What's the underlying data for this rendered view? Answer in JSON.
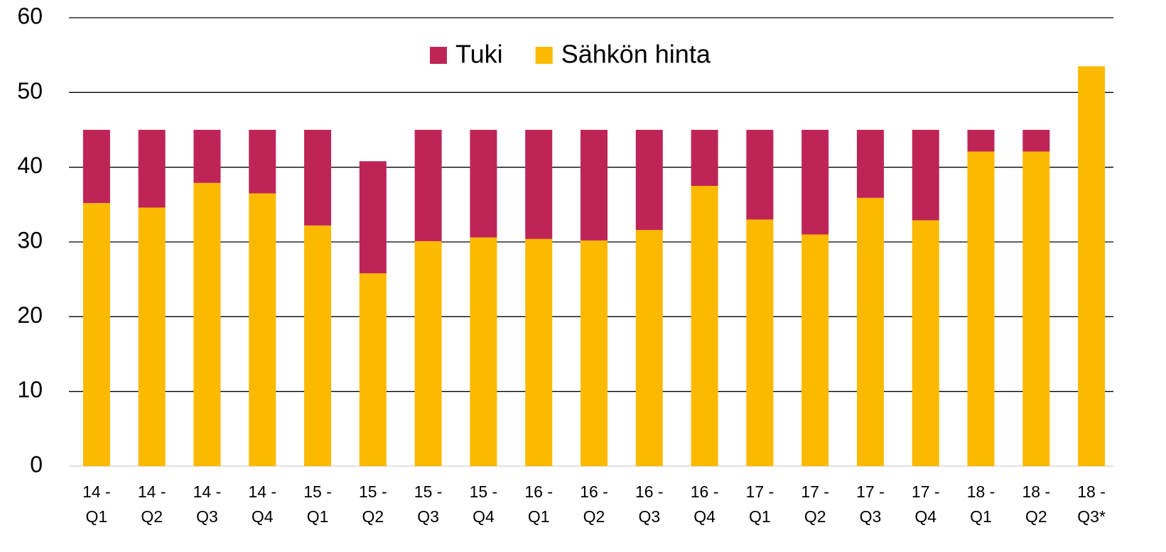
{
  "chart_data": {
    "type": "stacked_bar",
    "categories": [
      "14 - Q1",
      "14 - Q2",
      "14 - Q3",
      "14 - Q4",
      "15 - Q1",
      "15 - Q2",
      "15 - Q3",
      "15 - Q4",
      "16 - Q1",
      "16 - Q2",
      "16 - Q3",
      "16 - Q4",
      "17 - Q1",
      "17 - Q2",
      "17 - Q3",
      "17 - Q4",
      "18 - Q1",
      "18 - Q2",
      "18 - Q3*"
    ],
    "series": [
      {
        "name": "Sähkön hinta",
        "color": "#fbb900",
        "values": [
          35.2,
          34.6,
          37.9,
          36.5,
          32.2,
          25.8,
          30.1,
          30.6,
          30.4,
          30.2,
          31.6,
          37.5,
          33.0,
          31.0,
          35.9,
          32.9,
          42.1,
          42.1,
          53.5
        ]
      },
      {
        "name": "Tuki",
        "color": "#be2556",
        "values": [
          9.8,
          10.4,
          7.1,
          8.5,
          12.8,
          15.0,
          14.9,
          14.4,
          14.6,
          14.8,
          13.4,
          7.5,
          12.0,
          14.0,
          9.1,
          12.1,
          2.9,
          2.9,
          0
        ]
      }
    ],
    "ylim": [
      0,
      60
    ],
    "yticks": [
      0,
      10,
      20,
      30,
      40,
      50,
      60
    ],
    "grid": true,
    "legend": "top"
  }
}
